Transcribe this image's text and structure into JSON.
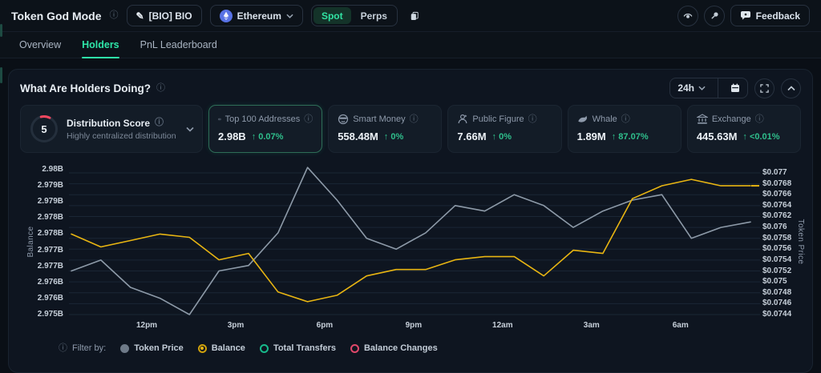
{
  "topbar": {
    "title": "Token God Mode",
    "token_button": {
      "label": "[BIO] BIO"
    },
    "chain_select": {
      "label": "Ethereum"
    },
    "market_toggle": {
      "spot": "Spot",
      "perps": "Perps",
      "selected": "Spot"
    },
    "feedback_label": "Feedback"
  },
  "tabs": [
    {
      "label": "Overview",
      "active": false
    },
    {
      "label": "Holders",
      "active": true
    },
    {
      "label": "PnL Leaderboard",
      "active": false
    }
  ],
  "panel": {
    "title": "What Are Holders Doing?",
    "timeframe": "24h"
  },
  "cards": {
    "distribution": {
      "score": "5",
      "title": "Distribution Score",
      "subtitle": "Highly centralized distribution"
    },
    "stats": [
      {
        "icon": "banknote-icon",
        "label": "Top 100 Addresses",
        "value": "2.98B",
        "change": "↑ 0.07%",
        "selected": true
      },
      {
        "icon": "smart-money-icon",
        "label": "Smart Money",
        "value": "558.48M",
        "change": "↑ 0%",
        "selected": false
      },
      {
        "icon": "public-figure-icon",
        "label": "Public Figure",
        "value": "7.66M",
        "change": "↑ 0%",
        "selected": false
      },
      {
        "icon": "whale-icon",
        "label": "Whale",
        "value": "1.89M",
        "change": "↑ 87.07%",
        "selected": false
      },
      {
        "icon": "exchange-icon",
        "label": "Exchange",
        "value": "445.63M",
        "change": "↑ <0.01%",
        "selected": false
      }
    ]
  },
  "chart_data": {
    "type": "line",
    "title": "What Are Holders Doing?",
    "x_tick_labels": [
      "12pm",
      "3pm",
      "6pm",
      "9pm",
      "12am",
      "3am",
      "6am"
    ],
    "x_tick_positions": [
      0.111,
      0.242,
      0.373,
      0.504,
      0.635,
      0.766,
      0.897
    ],
    "left_axis": {
      "label": "Balance",
      "unit": "B",
      "ymax": 2.98,
      "ymin": 2.9755,
      "tick_labels": [
        "2.98B",
        "2.979B",
        "2.979B",
        "2.978B",
        "2.978B",
        "2.977B",
        "2.977B",
        "2.976B",
        "2.976B",
        "2.975B"
      ]
    },
    "right_axis": {
      "label": "Token Price",
      "unit": "$",
      "ymax": 0.077,
      "ymin": 0.0744,
      "tick_labels": [
        "$0.077",
        "$0.0768",
        "$0.0766",
        "$0.0764",
        "$0.0762",
        "$0.076",
        "$0.0758",
        "$0.0756",
        "$0.0754",
        "$0.0752",
        "$0.075",
        "$0.0748",
        "$0.0746",
        "$0.0744"
      ]
    },
    "series": [
      {
        "name": "Token Price",
        "axis": "right",
        "color": "#8d9aa8",
        "values": [
          0.0752,
          0.0754,
          0.0749,
          0.0747,
          0.0744,
          0.0752,
          0.0753,
          0.0759,
          0.0771,
          0.0765,
          0.0758,
          0.0756,
          0.0759,
          0.0764,
          0.0763,
          0.0766,
          0.0764,
          0.076,
          0.0763,
          0.0765,
          0.0766,
          0.0758,
          0.076,
          0.0761
        ]
      },
      {
        "name": "Balance",
        "axis": "left",
        "color": "#e8b512",
        "values": [
          2.978,
          2.9776,
          2.9778,
          2.978,
          2.9779,
          2.9772,
          2.9774,
          2.9762,
          2.9759,
          2.9761,
          2.9767,
          2.9769,
          2.9769,
          2.9772,
          2.9773,
          2.9773,
          2.9767,
          2.9775,
          2.9774,
          2.9791,
          2.9795,
          2.9797,
          2.9795,
          2.9795
        ]
      }
    ],
    "grid": true,
    "legend_position": "bottom-left"
  },
  "filter": {
    "label": "Filter by:",
    "items": [
      {
        "label": "Token Price",
        "style": "solid-gray",
        "selected": false
      },
      {
        "label": "Balance",
        "style": "selected-yellow",
        "selected": true
      },
      {
        "label": "Total Transfers",
        "style": "outline-green",
        "selected": false
      },
      {
        "label": "Balance Changes",
        "style": "outline-red",
        "selected": false
      }
    ]
  },
  "colors": {
    "accent_green": "#2ee6a8",
    "line_yellow": "#e8b512",
    "line_gray": "#8d9aa8",
    "negative_red": "#f5475f",
    "eth_blue": "#5872e5",
    "grid": "#1a2635"
  }
}
